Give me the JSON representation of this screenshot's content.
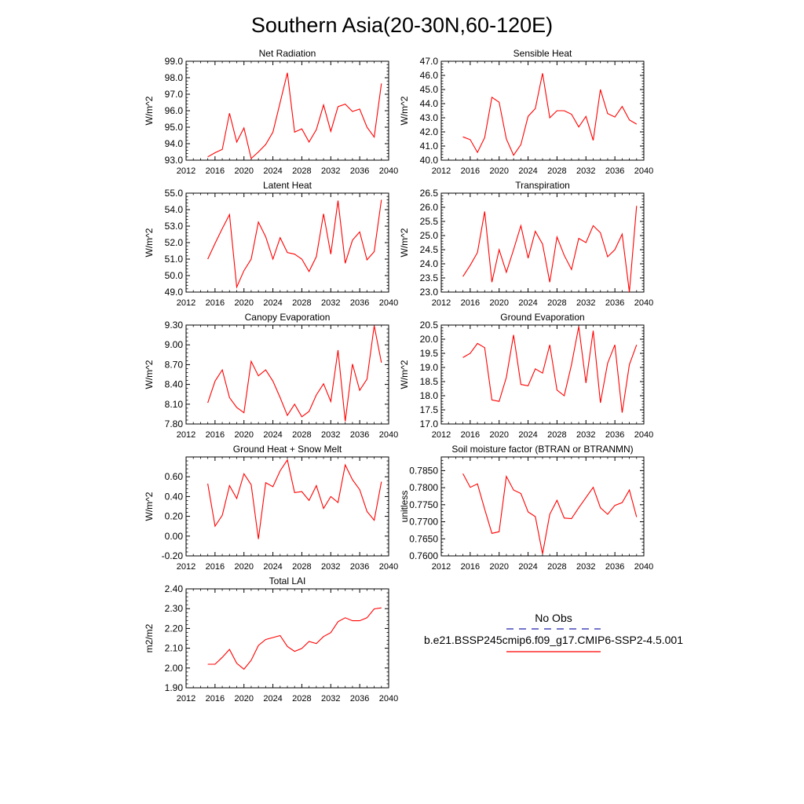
{
  "title": "Southern Asia(20-30N,60-120E)",
  "legend": {
    "entries": [
      {
        "label": "No Obs",
        "color": "#2222aa",
        "dash": true
      },
      {
        "label": "b.e21.BSSP245cmip6.f09_g17.CMIP6-SSP2-4.5.001",
        "color": "#ff0000",
        "dash": false
      }
    ]
  },
  "colors": {
    "series": "#ff0000",
    "axis": "#000000"
  },
  "chart_data": [
    {
      "type": "line",
      "title": "Net Radiation",
      "ylabel": "W/m^2",
      "xlim": [
        2012,
        2040
      ],
      "ylim": [
        93.0,
        99.0
      ],
      "xticks": [
        2012,
        2016,
        2020,
        2024,
        2028,
        2032,
        2036,
        2040
      ],
      "yticks": [
        93.0,
        94.0,
        95.0,
        96.0,
        97.0,
        98.0,
        99.0
      ],
      "ytick_labels": [
        "93.0",
        "94.0",
        "95.0",
        "96.0",
        "97.0",
        "98.0",
        "99.0"
      ],
      "grid": false,
      "x": [
        2015,
        2016,
        2017,
        2018,
        2019,
        2020,
        2021,
        2022,
        2023,
        2024,
        2025,
        2026,
        2027,
        2028,
        2029,
        2030,
        2031,
        2032,
        2033,
        2034,
        2035,
        2036,
        2037,
        2038,
        2039
      ],
      "series": [
        {
          "values": [
            93.2,
            93.45,
            93.65,
            95.85,
            94.1,
            94.95,
            93.1,
            93.5,
            93.95,
            94.7,
            96.5,
            98.3,
            94.7,
            94.9,
            94.1,
            94.85,
            96.35,
            94.75,
            96.25,
            96.4,
            95.95,
            96.1,
            95.0,
            94.4,
            97.65
          ]
        }
      ]
    },
    {
      "type": "line",
      "title": "Sensible Heat",
      "ylabel": "W/m^2",
      "xlim": [
        2012,
        2040
      ],
      "ylim": [
        40.0,
        47.0
      ],
      "xticks": [
        2012,
        2016,
        2020,
        2024,
        2028,
        2032,
        2036,
        2040
      ],
      "yticks": [
        40.0,
        41.0,
        42.0,
        43.0,
        44.0,
        45.0,
        46.0,
        47.0
      ],
      "ytick_labels": [
        "40.0",
        "41.0",
        "42.0",
        "43.0",
        "44.0",
        "45.0",
        "46.0",
        "47.0"
      ],
      "grid": false,
      "x": [
        2015,
        2016,
        2017,
        2018,
        2019,
        2020,
        2021,
        2022,
        2023,
        2024,
        2025,
        2026,
        2027,
        2028,
        2029,
        2030,
        2031,
        2032,
        2033,
        2034,
        2035,
        2036,
        2037,
        2038,
        2039
      ],
      "series": [
        {
          "values": [
            41.65,
            41.45,
            40.55,
            41.6,
            44.45,
            44.1,
            41.5,
            40.35,
            41.1,
            43.1,
            43.65,
            46.15,
            43.0,
            43.5,
            43.5,
            43.25,
            42.35,
            43.1,
            41.4,
            45.0,
            43.3,
            43.05,
            43.8,
            42.85,
            42.55
          ]
        }
      ]
    },
    {
      "type": "line",
      "title": "Latent Heat",
      "ylabel": "W/m^2",
      "xlim": [
        2012,
        2040
      ],
      "ylim": [
        49.0,
        55.0
      ],
      "xticks": [
        2012,
        2016,
        2020,
        2024,
        2028,
        2032,
        2036,
        2040
      ],
      "yticks": [
        49.0,
        50.0,
        51.0,
        52.0,
        53.0,
        54.0,
        55.0
      ],
      "ytick_labels": [
        "49.0",
        "50.0",
        "51.0",
        "52.0",
        "53.0",
        "54.0",
        "55.0"
      ],
      "grid": false,
      "x": [
        2015,
        2016,
        2017,
        2018,
        2019,
        2020,
        2021,
        2022,
        2023,
        2024,
        2025,
        2026,
        2027,
        2028,
        2029,
        2030,
        2031,
        2032,
        2033,
        2034,
        2035,
        2036,
        2037,
        2038,
        2039
      ],
      "series": [
        {
          "values": [
            51.0,
            51.95,
            52.85,
            53.7,
            49.3,
            50.3,
            51.0,
            53.25,
            52.35,
            51.0,
            52.3,
            51.4,
            51.3,
            51.0,
            50.25,
            51.15,
            53.75,
            51.3,
            54.55,
            50.75,
            52.15,
            52.65,
            50.95,
            51.45,
            54.6
          ]
        }
      ]
    },
    {
      "type": "line",
      "title": "Transpiration",
      "ylabel": "W/m^2",
      "xlim": [
        2012,
        2040
      ],
      "ylim": [
        23.0,
        26.5
      ],
      "xticks": [
        2012,
        2016,
        2020,
        2024,
        2028,
        2032,
        2036,
        2040
      ],
      "yticks": [
        23.0,
        23.5,
        24.0,
        24.5,
        25.0,
        25.5,
        26.0,
        26.5
      ],
      "ytick_labels": [
        "23.0",
        "23.5",
        "24.0",
        "24.5",
        "25.0",
        "25.5",
        "26.0",
        "26.5"
      ],
      "grid": false,
      "x": [
        2015,
        2016,
        2017,
        2018,
        2019,
        2020,
        2021,
        2022,
        2023,
        2024,
        2025,
        2026,
        2027,
        2028,
        2029,
        2030,
        2031,
        2032,
        2033,
        2034,
        2035,
        2036,
        2037,
        2038,
        2039
      ],
      "series": [
        {
          "values": [
            23.55,
            23.95,
            24.4,
            25.85,
            23.35,
            24.5,
            23.7,
            24.5,
            25.35,
            24.2,
            25.15,
            24.7,
            23.35,
            24.95,
            24.3,
            23.8,
            24.9,
            24.75,
            25.35,
            25.1,
            24.25,
            24.5,
            25.05,
            23.0,
            26.05
          ]
        }
      ]
    },
    {
      "type": "line",
      "title": "Canopy Evaporation",
      "ylabel": "W/m^2",
      "xlim": [
        2012,
        2040
      ],
      "ylim": [
        7.8,
        9.3
      ],
      "xticks": [
        2012,
        2016,
        2020,
        2024,
        2028,
        2032,
        2036,
        2040
      ],
      "yticks": [
        7.8,
        8.1,
        8.4,
        8.7,
        9.0,
        9.3
      ],
      "ytick_labels": [
        "7.80",
        "8.10",
        "8.40",
        "8.70",
        "9.00",
        "9.30"
      ],
      "grid": false,
      "x": [
        2015,
        2016,
        2017,
        2018,
        2019,
        2020,
        2021,
        2022,
        2023,
        2024,
        2025,
        2026,
        2027,
        2028,
        2029,
        2030,
        2031,
        2032,
        2033,
        2034,
        2035,
        2036,
        2037,
        2038,
        2039
      ],
      "series": [
        {
          "values": [
            8.12,
            8.45,
            8.62,
            8.2,
            8.05,
            7.97,
            8.75,
            8.53,
            8.62,
            8.45,
            8.2,
            7.93,
            8.1,
            7.91,
            7.99,
            8.24,
            8.41,
            8.14,
            8.92,
            7.84,
            8.71,
            8.31,
            8.48,
            9.29,
            8.73
          ]
        }
      ]
    },
    {
      "type": "line",
      "title": "Ground Evaporation",
      "ylabel": "W/m^2",
      "xlim": [
        2012,
        2040
      ],
      "ylim": [
        17.0,
        20.5
      ],
      "xticks": [
        2012,
        2016,
        2020,
        2024,
        2028,
        2032,
        2036,
        2040
      ],
      "yticks": [
        17.0,
        17.5,
        18.0,
        18.5,
        19.0,
        19.5,
        20.0,
        20.5
      ],
      "ytick_labels": [
        "17.0",
        "17.5",
        "18.0",
        "18.5",
        "19.0",
        "19.5",
        "20.0",
        "20.5"
      ],
      "grid": false,
      "x": [
        2015,
        2016,
        2017,
        2018,
        2019,
        2020,
        2021,
        2022,
        2023,
        2024,
        2025,
        2026,
        2027,
        2028,
        2029,
        2030,
        2031,
        2032,
        2033,
        2034,
        2035,
        2036,
        2037,
        2038,
        2039
      ],
      "series": [
        {
          "values": [
            19.35,
            19.5,
            19.85,
            19.7,
            17.85,
            17.8,
            18.65,
            20.15,
            18.4,
            18.35,
            18.95,
            18.8,
            19.8,
            18.2,
            18.0,
            19.1,
            20.45,
            18.45,
            20.3,
            17.75,
            19.15,
            19.8,
            17.4,
            19.1,
            19.8
          ]
        }
      ]
    },
    {
      "type": "line",
      "title": "Ground Heat + Snow Melt",
      "ylabel": "W/m^2",
      "xlim": [
        2012,
        2040
      ],
      "ylim": [
        -0.2,
        0.8
      ],
      "xticks": [
        2012,
        2016,
        2020,
        2024,
        2028,
        2032,
        2036,
        2040
      ],
      "yticks": [
        -0.2,
        0.0,
        0.2,
        0.4,
        0.6
      ],
      "ytick_labels": [
        "-0.20",
        "0.00",
        "0.20",
        "0.40",
        "0.60"
      ],
      "grid": false,
      "x": [
        2015,
        2016,
        2017,
        2018,
        2019,
        2020,
        2021,
        2022,
        2023,
        2024,
        2025,
        2026,
        2027,
        2028,
        2029,
        2030,
        2031,
        2032,
        2033,
        2034,
        2035,
        2036,
        2037,
        2038,
        2039
      ],
      "series": [
        {
          "values": [
            0.53,
            0.1,
            0.21,
            0.51,
            0.38,
            0.63,
            0.52,
            -0.03,
            0.54,
            0.5,
            0.66,
            0.77,
            0.44,
            0.45,
            0.36,
            0.51,
            0.28,
            0.4,
            0.34,
            0.72,
            0.57,
            0.47,
            0.25,
            0.16,
            0.55
          ]
        }
      ]
    },
    {
      "type": "line",
      "title": "Soil moisture factor (BTRAN or BTRANMN)",
      "ylabel": "unitless",
      "xlim": [
        2012,
        2040
      ],
      "ylim": [
        0.76,
        0.789
      ],
      "xticks": [
        2012,
        2016,
        2020,
        2024,
        2028,
        2032,
        2036,
        2040
      ],
      "yticks": [
        0.76,
        0.765,
        0.77,
        0.775,
        0.78,
        0.785
      ],
      "ytick_labels": [
        "0.7600",
        "0.7650",
        "0.7700",
        "0.7750",
        "0.7800",
        "0.7850"
      ],
      "grid": false,
      "x": [
        2015,
        2016,
        2017,
        2018,
        2019,
        2020,
        2021,
        2022,
        2023,
        2024,
        2025,
        2026,
        2027,
        2028,
        2029,
        2030,
        2031,
        2032,
        2033,
        2034,
        2035,
        2036,
        2037,
        2038,
        2039
      ],
      "series": [
        {
          "values": [
            0.7841,
            0.7801,
            0.7811,
            0.7737,
            0.7666,
            0.7671,
            0.7833,
            0.7793,
            0.7783,
            0.7729,
            0.7715,
            0.7606,
            0.7722,
            0.7763,
            0.7711,
            0.7709,
            0.7741,
            0.7771,
            0.7801,
            0.7741,
            0.7722,
            0.7748,
            0.7756,
            0.7793,
            0.7714
          ]
        }
      ]
    },
    {
      "type": "line",
      "title": "Total LAI",
      "ylabel": "m2/m2",
      "xlim": [
        2012,
        2040
      ],
      "ylim": [
        1.9,
        2.4
      ],
      "xticks": [
        2012,
        2016,
        2020,
        2024,
        2028,
        2032,
        2036,
        2040
      ],
      "yticks": [
        1.9,
        2.0,
        2.1,
        2.2,
        2.3,
        2.4
      ],
      "ytick_labels": [
        "1.90",
        "2.00",
        "2.10",
        "2.20",
        "2.30",
        "2.40"
      ],
      "grid": false,
      "x": [
        2015,
        2016,
        2017,
        2018,
        2019,
        2020,
        2021,
        2022,
        2023,
        2024,
        2025,
        2026,
        2027,
        2028,
        2029,
        2030,
        2031,
        2032,
        2033,
        2034,
        2035,
        2036,
        2037,
        2038,
        2039
      ],
      "series": [
        {
          "values": [
            2.019,
            2.019,
            2.054,
            2.094,
            2.024,
            1.994,
            2.039,
            2.114,
            2.144,
            2.154,
            2.164,
            2.109,
            2.084,
            2.099,
            2.134,
            2.124,
            2.159,
            2.179,
            2.234,
            2.254,
            2.239,
            2.239,
            2.254,
            2.299,
            2.304
          ]
        }
      ]
    }
  ]
}
